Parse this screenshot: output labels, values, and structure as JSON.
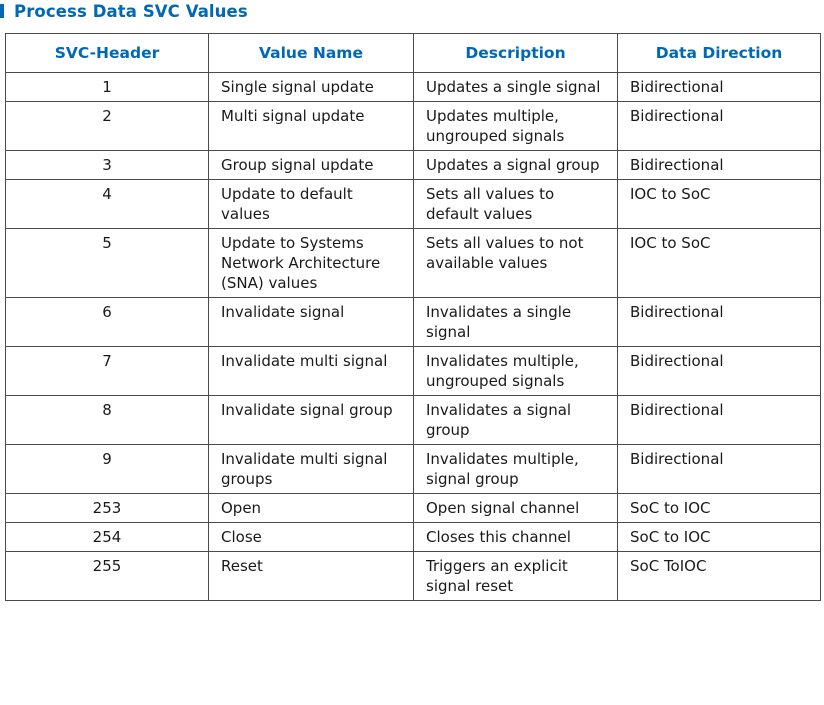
{
  "document": {
    "title": "Process Data SVC Values"
  },
  "table": {
    "headers": [
      "SVC-Header",
      "Value Name",
      "Description",
      "Data Direction"
    ],
    "rows": [
      {
        "svc": "1",
        "name": "Single signal update",
        "description": "Updates a single signal",
        "direction": "Bidirectional"
      },
      {
        "svc": "2",
        "name": "Multi signal update",
        "description": "Updates multiple, ungrouped signals",
        "direction": "Bidirectional"
      },
      {
        "svc": "3",
        "name": "Group signal update",
        "description": "Updates a signal group",
        "direction": "Bidirectional"
      },
      {
        "svc": "4",
        "name": "Update to default values",
        "description": "Sets all values to default values",
        "direction": "IOC to SoC"
      },
      {
        "svc": "5",
        "name": "Update to Systems Network Architecture (SNA) values",
        "description": "Sets all values to not available values",
        "direction": "IOC to SoC"
      },
      {
        "svc": "6",
        "name": "Invalidate signal",
        "description": "Invalidates a single signal",
        "direction": "Bidirectional"
      },
      {
        "svc": "7",
        "name": "Invalidate multi signal",
        "description": "Invalidates multiple, ungrouped signals",
        "direction": "Bidirectional"
      },
      {
        "svc": "8",
        "name": "Invalidate signal group",
        "description": "Invalidates a signal group",
        "direction": "Bidirectional"
      },
      {
        "svc": "9",
        "name": "Invalidate multi signal groups",
        "description": "Invalidates multiple, signal group",
        "direction": "Bidirectional"
      },
      {
        "svc": "253",
        "name": "Open",
        "description": "Open signal channel",
        "direction": "SoC to IOC"
      },
      {
        "svc": "254",
        "name": "Close",
        "description": "Closes this channel",
        "direction": "SoC to IOC"
      },
      {
        "svc": "255",
        "name": "Reset",
        "description": "Triggers an explicit signal reset",
        "direction": "SoC ToIOC"
      }
    ]
  }
}
